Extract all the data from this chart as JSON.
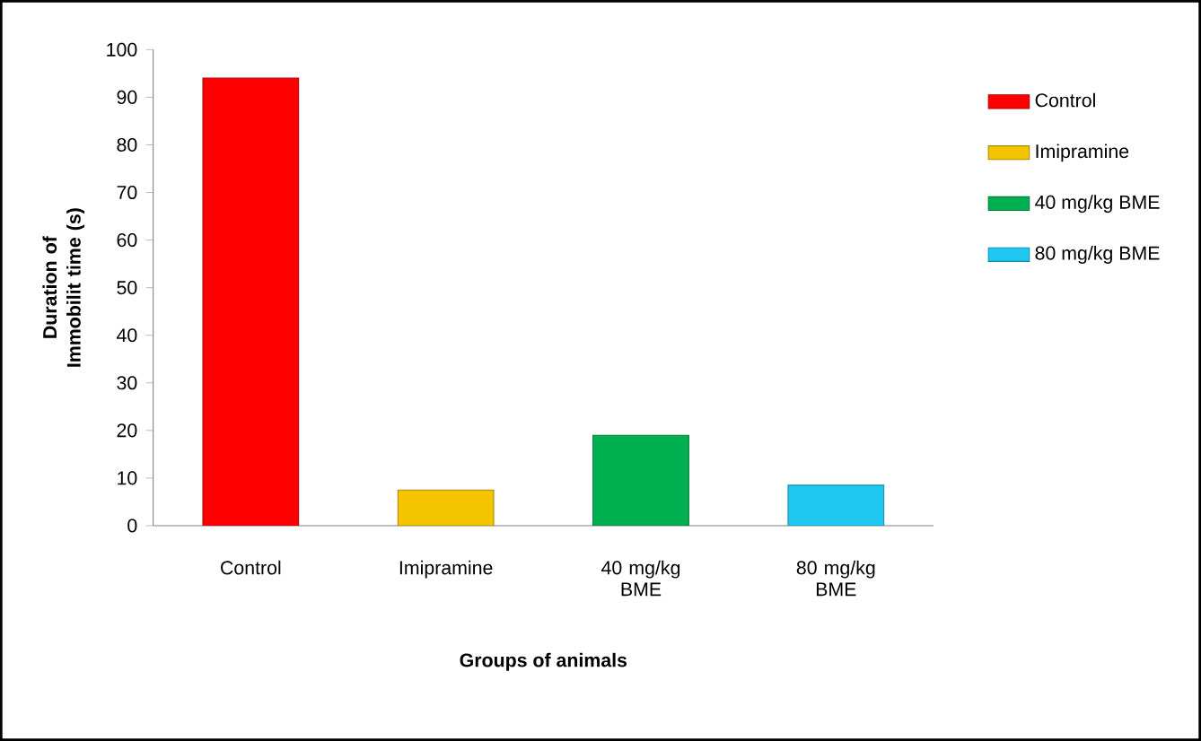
{
  "chart_data": {
    "type": "bar",
    "xlabel": "Groups of animals",
    "ylabel": "Duration of Immobilit time (s)",
    "categories": [
      "Control",
      "Imipramine",
      "40 mg/kg BME",
      "80 mg/kg BME"
    ],
    "series": [
      {
        "name": "Control",
        "color": "#ff0000",
        "values": [
          94,
          null,
          null,
          null
        ]
      },
      {
        "name": "Imipramine",
        "color": "#f5c400",
        "values": [
          null,
          7.5,
          null,
          null
        ]
      },
      {
        "name": "40 mg/kg BME",
        "color": "#00b050",
        "values": [
          null,
          null,
          19,
          null
        ]
      },
      {
        "name": "80 mg/kg BME",
        "color": "#1ec8f0",
        "values": [
          null,
          null,
          null,
          8.5
        ]
      }
    ],
    "ylim": [
      0,
      100
    ],
    "yticks": [
      0,
      10,
      20,
      30,
      40,
      50,
      60,
      70,
      80,
      90,
      100
    ],
    "legend": "right"
  }
}
